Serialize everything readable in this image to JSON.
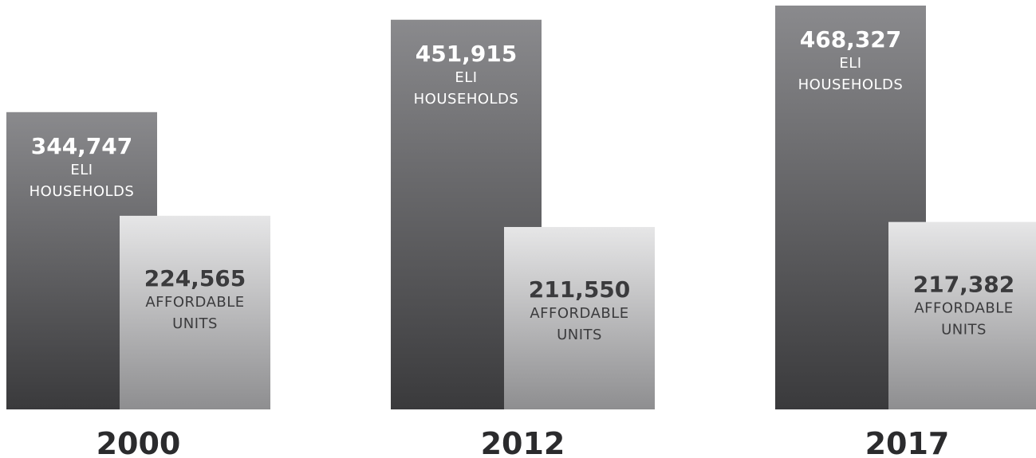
{
  "chart_data": {
    "type": "bar",
    "categories": [
      "2000",
      "2012",
      "2017"
    ],
    "series": [
      {
        "values": [
          344747,
          451915,
          468327
        ],
        "labels": [
          "344,747",
          "451,915",
          "468,327"
        ],
        "caption": [
          "ELI",
          "HOUSEHOLDS"
        ],
        "color_top": "#8a8a8d",
        "color_bottom": "#3a3a3c",
        "label_color": "#ffffff"
      },
      {
        "values": [
          224565,
          211550,
          217382
        ],
        "labels": [
          "224,565",
          "211,550",
          "217,382"
        ],
        "caption": [
          "AFFORDABLE",
          "UNITS"
        ],
        "color_top": "#e6e6e7",
        "color_bottom": "#8e8e90",
        "label_color": "#3b3b3d"
      }
    ],
    "grid": false,
    "legend": "none"
  }
}
